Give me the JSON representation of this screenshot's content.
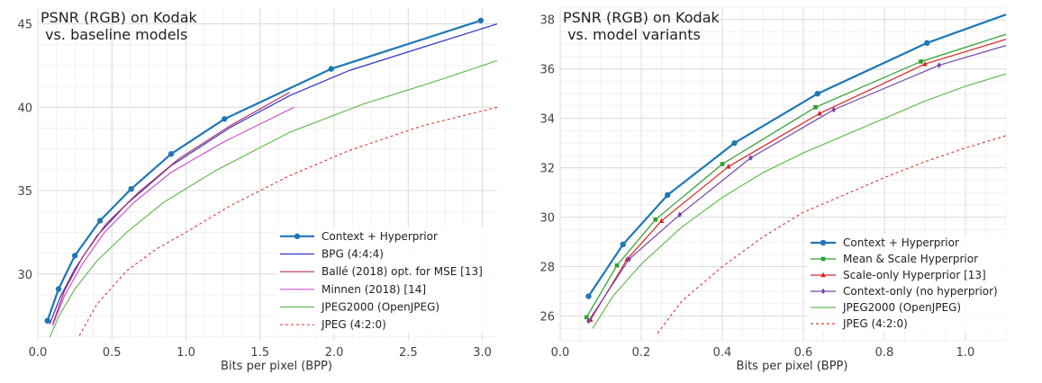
{
  "chart_data": [
    {
      "type": "line",
      "title": [
        "PSNR (RGB) on Kodak",
        " vs. baseline models"
      ],
      "xlabel": "Bits per pixel (BPP)",
      "ylabel": "",
      "xlim": [
        0,
        3.1
      ],
      "ylim": [
        26,
        46
      ],
      "xticks": [
        0,
        0.5,
        1,
        1.5,
        2,
        2.5,
        3
      ],
      "xtick_labels": [
        "0.0",
        "0.5",
        "1.0",
        "1.5",
        "2.0",
        "2.5",
        "3.0"
      ],
      "yticks": [
        30,
        35,
        40,
        45
      ],
      "ytick_labels": [
        "30",
        "35",
        "40",
        "45"
      ],
      "grid": true,
      "legend_position": "bottom-right",
      "series": [
        {
          "name": "Context + Hyperprior",
          "color": "#1f77b4",
          "width": 2.2,
          "markers": true,
          "x": [
            0.065,
            0.14,
            0.25,
            0.42,
            0.63,
            0.9,
            1.26,
            1.98,
            2.99
          ],
          "y": [
            27.2,
            29.1,
            31.1,
            33.2,
            35.1,
            37.2,
            39.3,
            42.3,
            45.2
          ]
        },
        {
          "name": "BPG (4:4:4)",
          "color": "#3333cc",
          "width": 1.2,
          "markers": false,
          "x": [
            0.08,
            0.15,
            0.25,
            0.4,
            0.6,
            0.9,
            1.3,
            1.7,
            2.1,
            2.6,
            3.1
          ],
          "y": [
            27.0,
            28.6,
            30.3,
            32.3,
            34.2,
            36.5,
            38.8,
            40.7,
            42.2,
            43.6,
            45.0
          ]
        },
        {
          "name": "Ballé (2018) opt. for MSE [13]",
          "color": "#b0305c",
          "width": 1.2,
          "markers": false,
          "x": [
            0.1,
            0.18,
            0.3,
            0.46,
            0.68,
            0.95,
            1.3,
            1.7
          ],
          "y": [
            27.0,
            29.0,
            31.0,
            33.0,
            34.9,
            36.9,
            38.9,
            40.9
          ]
        },
        {
          "name": "Minnen (2018) [14]",
          "color": "#cc55cc",
          "width": 1.2,
          "markers": false,
          "x": [
            0.1,
            0.18,
            0.3,
            0.45,
            0.65,
            0.9,
            1.25,
            1.73
          ],
          "y": [
            26.9,
            28.7,
            30.6,
            32.5,
            34.3,
            36.1,
            37.9,
            40.0
          ]
        },
        {
          "name": "JPEG2000 (OpenJPEG)",
          "color": "#66bb55",
          "width": 1.2,
          "markers": false,
          "x": [
            0.08,
            0.15,
            0.25,
            0.4,
            0.6,
            0.85,
            1.2,
            1.7,
            2.2,
            2.7,
            3.1
          ],
          "y": [
            26.2,
            27.6,
            29.1,
            30.8,
            32.5,
            34.3,
            36.2,
            38.5,
            40.2,
            41.6,
            42.8
          ]
        },
        {
          "name": "JPEG (4:2:0)",
          "color": "#dd4444",
          "width": 1.2,
          "markers": false,
          "dashed": true,
          "x": [
            0.28,
            0.4,
            0.6,
            0.8,
            1.0,
            1.3,
            1.7,
            2.1,
            2.6,
            3.1
          ],
          "y": [
            26.3,
            28.2,
            30.2,
            31.5,
            32.5,
            34.1,
            35.9,
            37.4,
            38.9,
            40.0
          ]
        }
      ]
    },
    {
      "type": "line",
      "title": [
        "PSNR (RGB) on Kodak",
        " vs. model variants"
      ],
      "xlabel": "Bits per pixel (BPP)",
      "ylabel": "",
      "xlim": [
        0,
        1.1
      ],
      "ylim": [
        25,
        38.5
      ],
      "xticks": [
        0,
        0.2,
        0.4,
        0.6,
        0.8,
        1.0
      ],
      "xtick_labels": [
        "0.0",
        "0.2",
        "0.4",
        "0.6",
        "0.8",
        "1.0"
      ],
      "yticks": [
        26,
        28,
        30,
        32,
        34,
        36,
        38
      ],
      "ytick_labels": [
        "26",
        "28",
        "30",
        "32",
        "34",
        "36",
        "38"
      ],
      "grid": true,
      "legend_position": "bottom-right",
      "series": [
        {
          "name": "Context + Hyperprior",
          "color": "#1f77b4",
          "width": 2.2,
          "markers": true,
          "marker": "circle",
          "x": [
            0.07,
            0.155,
            0.265,
            0.43,
            0.635,
            0.905,
            1.1
          ],
          "y": [
            26.8,
            28.9,
            30.9,
            33.0,
            35.0,
            37.05,
            38.2
          ]
        },
        {
          "name": "Mean & Scale Hyperprior",
          "color": "#2ca02c",
          "width": 1.2,
          "markers": true,
          "marker": "square",
          "x": [
            0.065,
            0.14,
            0.235,
            0.4,
            0.63,
            0.89,
            1.1
          ],
          "y": [
            25.95,
            28.05,
            29.9,
            32.15,
            34.45,
            36.3,
            37.4
          ]
        },
        {
          "name": "Scale-only Hyperprior [13]",
          "color": "#d62728",
          "width": 1.2,
          "markers": true,
          "marker": "triangle",
          "x": [
            0.075,
            0.165,
            0.25,
            0.415,
            0.64,
            0.9,
            1.1
          ],
          "y": [
            25.85,
            28.3,
            29.85,
            32.05,
            34.2,
            36.2,
            37.2
          ]
        },
        {
          "name": "Context-only (no hyperprior)",
          "color": "#7744aa",
          "width": 1.2,
          "markers": true,
          "marker": "diamond",
          "x": [
            0.07,
            0.17,
            0.295,
            0.47,
            0.675,
            0.935,
            1.1
          ],
          "y": [
            25.8,
            28.3,
            30.1,
            32.4,
            34.35,
            36.15,
            36.95
          ]
        },
        {
          "name": "JPEG2000 (OpenJPEG)",
          "color": "#66bb55",
          "width": 1.2,
          "markers": false,
          "x": [
            0.08,
            0.13,
            0.2,
            0.3,
            0.4,
            0.5,
            0.6,
            0.7,
            0.8,
            0.9,
            1.0,
            1.1
          ],
          "y": [
            25.5,
            26.8,
            28.1,
            29.6,
            30.8,
            31.8,
            32.6,
            33.3,
            34.0,
            34.7,
            35.3,
            35.8
          ]
        },
        {
          "name": "JPEG (4:2:0)",
          "color": "#dd4444",
          "width": 1.2,
          "markers": false,
          "dashed": true,
          "x": [
            0.24,
            0.3,
            0.4,
            0.5,
            0.6,
            0.7,
            0.8,
            0.9,
            1.0,
            1.1
          ],
          "y": [
            25.3,
            26.6,
            28.0,
            29.2,
            30.2,
            30.9,
            31.6,
            32.25,
            32.8,
            33.3
          ]
        }
      ]
    }
  ]
}
